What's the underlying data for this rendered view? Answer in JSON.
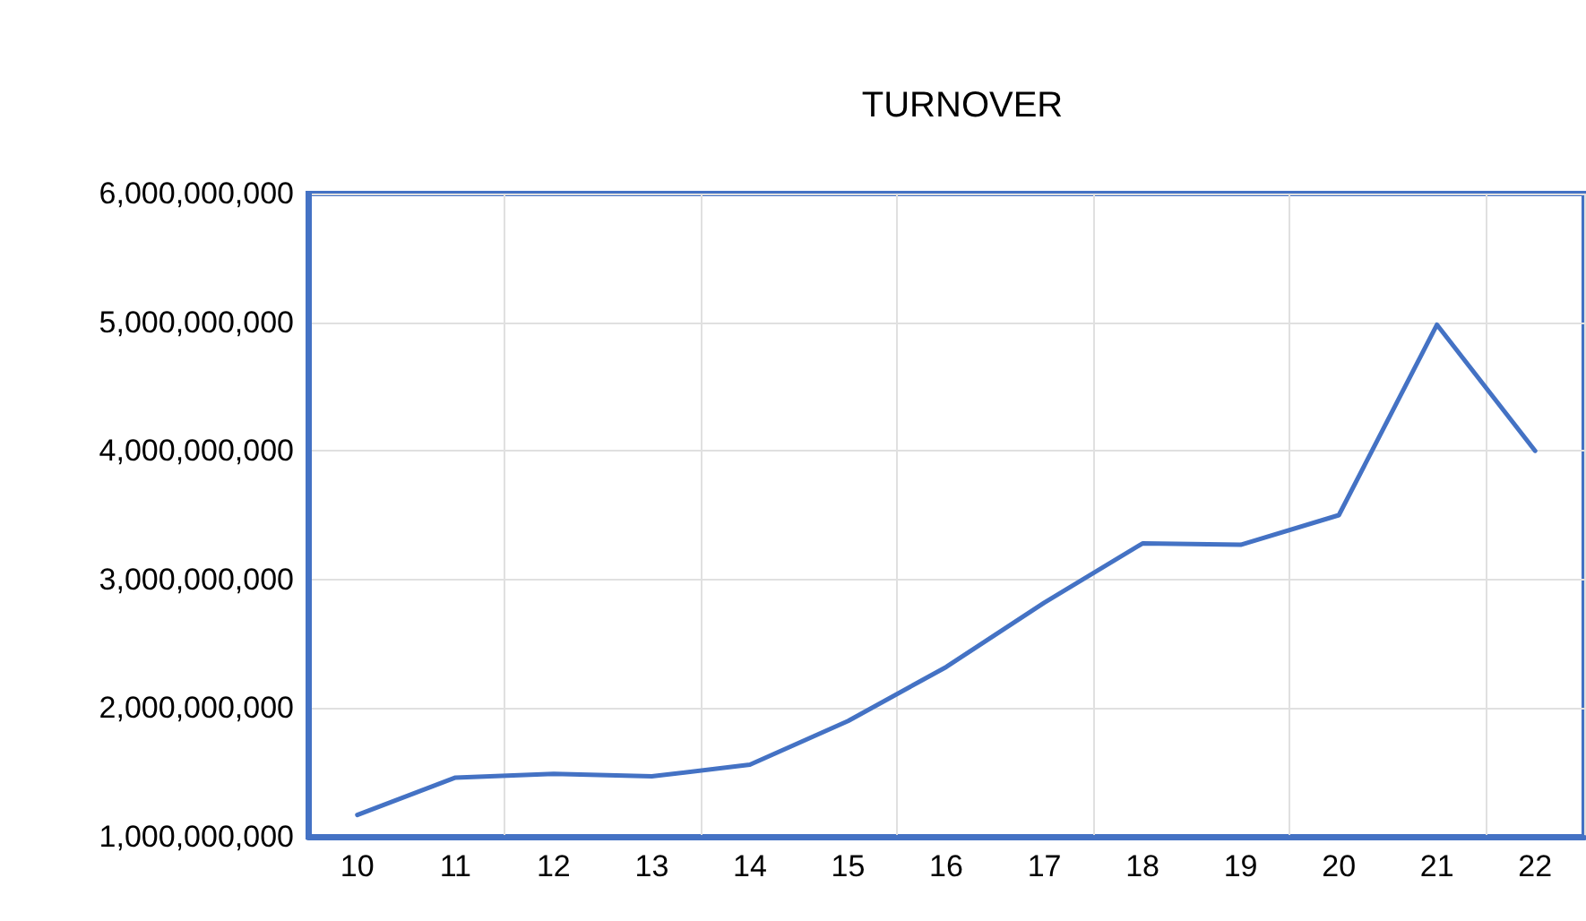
{
  "chart_data": {
    "type": "line",
    "title": "TURNOVER",
    "categories": [
      "10",
      "11",
      "12",
      "13",
      "14",
      "15",
      "16",
      "17",
      "18",
      "19",
      "20",
      "21",
      "22"
    ],
    "series": [
      {
        "color": "#4472c4",
        "values": [
          1170000000,
          1460000000,
          1490000000,
          1470000000,
          1560000000,
          1900000000,
          2320000000,
          2820000000,
          3280000000,
          3270000000,
          3500000000,
          4980000000,
          4000000000
        ]
      }
    ],
    "ylim": [
      1000000000,
      6000000000
    ],
    "yticks": [
      {
        "value": 1000000000,
        "label": "1,000,000,000"
      },
      {
        "value": 2000000000,
        "label": "2,000,000,000"
      },
      {
        "value": 3000000000,
        "label": "3,000,000,000"
      },
      {
        "value": 4000000000,
        "label": "4,000,000,000"
      },
      {
        "value": 5000000000,
        "label": "5,000,000,000"
      },
      {
        "value": 6000000000,
        "label": "6,000,000,000"
      }
    ],
    "grid": true,
    "marker": "none",
    "line_style": "solid"
  }
}
